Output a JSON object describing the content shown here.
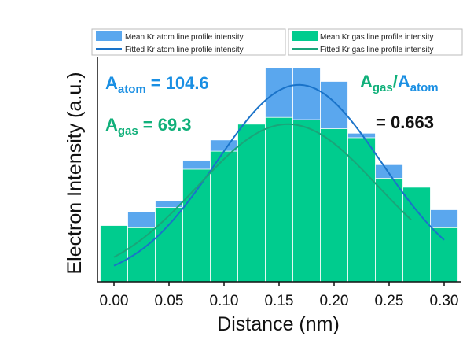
{
  "chart_data": {
    "type": "bar",
    "title": "",
    "xlabel": "Distance (nm)",
    "ylabel": "Electron Intensity (a.u.)",
    "x_ticks": [
      "0.00",
      "0.05",
      "0.10",
      "0.15",
      "0.20",
      "0.25",
      "0.30"
    ],
    "xlim": [
      -0.015,
      0.315
    ],
    "ylim": [
      0,
      1
    ],
    "y_ticks_shown": false,
    "grid": false,
    "bin_width": 0.025,
    "bin_centers": [
      0.0,
      0.025,
      0.05,
      0.075,
      0.1,
      0.125,
      0.15,
      0.175,
      0.2,
      0.225,
      0.25,
      0.275,
      0.3
    ],
    "series": [
      {
        "name": "Mean Kr atom line profile intensity",
        "kind": "bar",
        "color": "#5aa7ee",
        "values": [
          0.25,
          0.31,
          0.36,
          0.54,
          0.63,
          0.63,
          0.95,
          0.95,
          0.89,
          0.66,
          0.52,
          0.37,
          0.32
        ]
      },
      {
        "name": "Mean Kr gas line profile intensity",
        "kind": "bar",
        "color": "#00cc8e",
        "values": [
          0.25,
          0.24,
          0.33,
          0.5,
          0.58,
          0.7,
          0.73,
          0.72,
          0.68,
          0.64,
          0.46,
          0.42,
          0.24
        ]
      },
      {
        "name": "Fitted Kr atom line profile intensity",
        "kind": "line",
        "color": "#1a73c9",
        "fit": "gaussian",
        "amplitude": 0.875,
        "center": 0.168,
        "sigma": 0.075,
        "offset": 0.0,
        "x_range": [
          0.0,
          0.3
        ]
      },
      {
        "name": "Fitted Kr gas line profile intensity",
        "kind": "line",
        "color": "#1aa57a",
        "fit": "gaussian",
        "amplitude": 0.7,
        "center": 0.158,
        "sigma": 0.082,
        "offset": 0.0,
        "x_range": [
          0.0,
          0.27
        ]
      }
    ],
    "legend_placement": "top",
    "annotations": {
      "a_atom": {
        "base": "A",
        "sub": "atom",
        "value": "= 104.6",
        "color": "#1a8fe3"
      },
      "a_gas": {
        "base": "A",
        "sub": "gas",
        "value": "= 69.3",
        "color": "#10b07a"
      },
      "ratio": {
        "num_base": "A",
        "num_sub": "gas",
        "slash": "/",
        "den_base": "A",
        "den_sub": "atom",
        "value": "= 0.663",
        "num_color": "#10b07a",
        "den_color": "#1a8fe3",
        "value_color": "#111111"
      }
    }
  }
}
